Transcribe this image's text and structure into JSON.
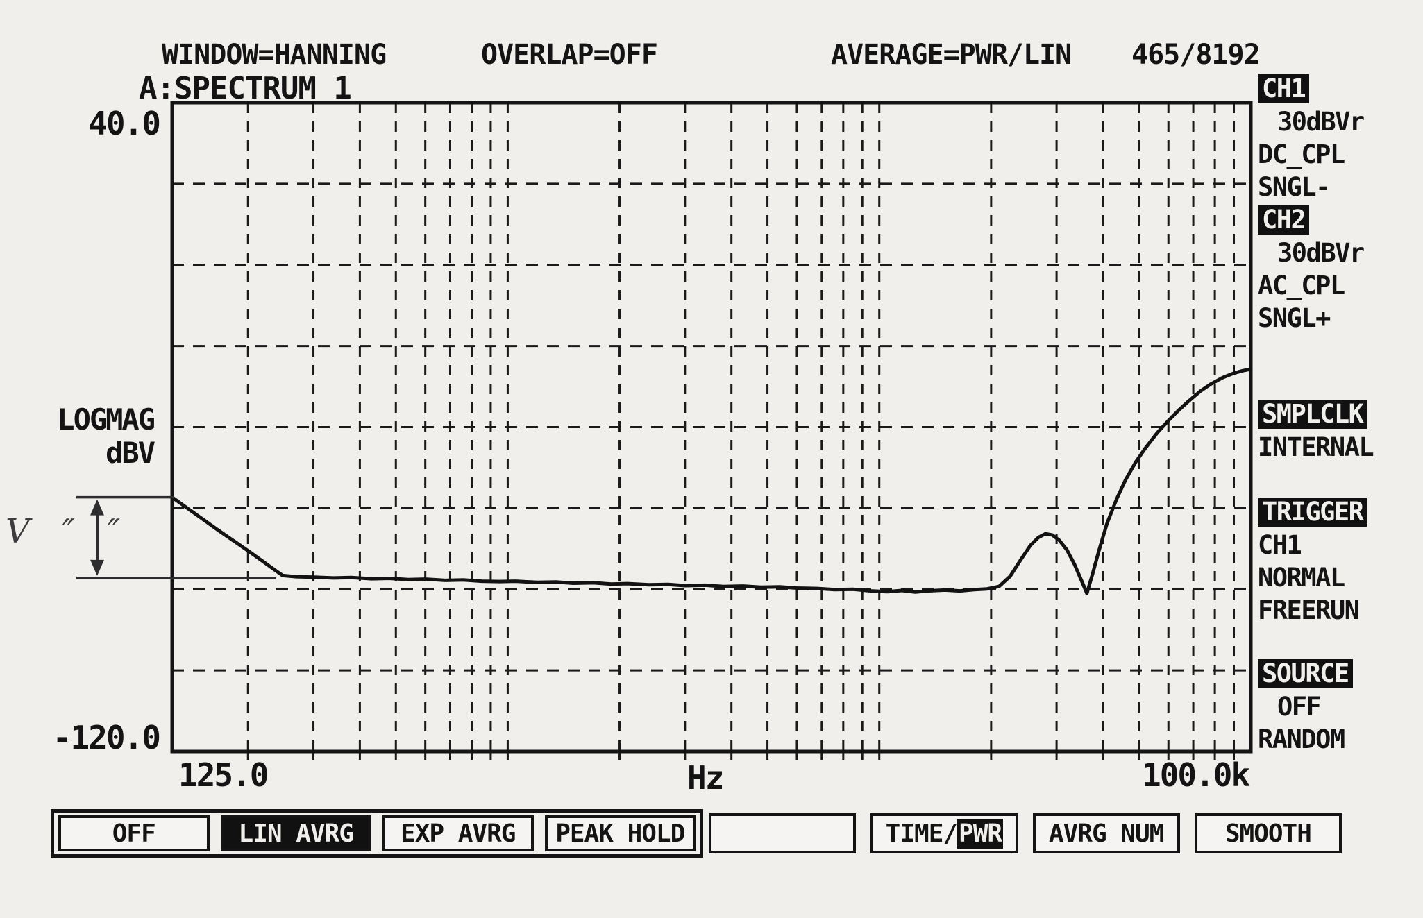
{
  "header": {
    "window": "WINDOW=HANNING",
    "overlap": "OVERLAP=OFF",
    "average": "AVERAGE=PWR/LIN",
    "frame_count": "465/8192"
  },
  "plot": {
    "trace_title": "A:SPECTRUM 1",
    "y_max_label": "40.0",
    "y_min_label": "-120.0",
    "y_unit_line1": "LOGMAG",
    "y_unit_line2": "dBV",
    "x_min_label": "125.0",
    "x_unit": "Hz",
    "x_max_label": "100.0k"
  },
  "annotation": {
    "text": "V ″ ″",
    "upper_db": -57.3,
    "lower_db": -77.2
  },
  "side_panel": {
    "items": [
      {
        "label": "CH1",
        "highlight": true,
        "indent": false,
        "gap": ""
      },
      {
        "label": "30dBVr",
        "highlight": false,
        "indent": true,
        "gap": ""
      },
      {
        "label": "DC_CPL",
        "highlight": false,
        "indent": false,
        "gap": ""
      },
      {
        "label": "SNGL-",
        "highlight": false,
        "indent": false,
        "gap": ""
      },
      {
        "label": "CH2",
        "highlight": true,
        "indent": false,
        "gap": ""
      },
      {
        "label": "30dBVr",
        "highlight": false,
        "indent": true,
        "gap": ""
      },
      {
        "label": "AC_CPL",
        "highlight": false,
        "indent": false,
        "gap": ""
      },
      {
        "label": "SNGL+",
        "highlight": false,
        "indent": false,
        "gap": ""
      },
      {
        "label": "SMPLCLK",
        "highlight": true,
        "indent": false,
        "gap": "gap-smplclk"
      },
      {
        "label": "INTERNAL",
        "highlight": false,
        "indent": false,
        "gap": ""
      },
      {
        "label": "TRIGGER",
        "highlight": true,
        "indent": false,
        "gap": "gap-trigger"
      },
      {
        "label": "CH1",
        "highlight": false,
        "indent": false,
        "gap": ""
      },
      {
        "label": "NORMAL",
        "highlight": false,
        "indent": false,
        "gap": ""
      },
      {
        "label": "FREERUN",
        "highlight": false,
        "indent": false,
        "gap": ""
      },
      {
        "label": "SOURCE",
        "highlight": true,
        "indent": false,
        "gap": "gap-source"
      },
      {
        "label": "OFF",
        "highlight": false,
        "indent": true,
        "gap": ""
      },
      {
        "label": "RANDOM",
        "highlight": false,
        "indent": false,
        "gap": ""
      }
    ]
  },
  "bottom_menu": {
    "group1": [
      {
        "label": "OFF",
        "selected": false
      },
      {
        "label": "LIN AVRG",
        "selected": true
      },
      {
        "label": "EXP AVRG",
        "selected": false
      },
      {
        "label": "PEAK HOLD",
        "selected": false
      }
    ],
    "group2": [
      {
        "label": "",
        "suffix": "",
        "suffix_selected": false
      },
      {
        "label": "TIME/",
        "suffix": "PWR",
        "suffix_selected": true
      },
      {
        "label": "AVRG NUM",
        "suffix": "",
        "suffix_selected": false
      },
      {
        "label": "SMOOTH",
        "suffix": "",
        "suffix_selected": false
      }
    ]
  },
  "chart_data": {
    "type": "line",
    "title": "A:SPECTRUM 1",
    "xlabel": "Hz",
    "ylabel": "LOGMAG dBV",
    "x_scale": "log",
    "x_range_hz": [
      125,
      100000
    ],
    "y_range_db": [
      -120,
      40
    ],
    "x_gridlines_hz": [
      200,
      300,
      400,
      500,
      600,
      700,
      800,
      900,
      1000,
      2000,
      3000,
      4000,
      5000,
      6000,
      7000,
      8000,
      9000,
      10000,
      20000,
      30000,
      40000,
      50000,
      60000,
      70000,
      80000,
      90000
    ],
    "y_gridlines_db": [
      20,
      0,
      -20,
      -40,
      -60,
      -80,
      -100
    ],
    "grid": true,
    "points_hz_db": [
      [
        125,
        -57.3
      ],
      [
        135,
        -59.5
      ],
      [
        150,
        -62.5
      ],
      [
        165,
        -65.2
      ],
      [
        180,
        -67.6
      ],
      [
        200,
        -70.5
      ],
      [
        220,
        -73.2
      ],
      [
        235,
        -75.1
      ],
      [
        248,
        -76.6
      ],
      [
        270,
        -76.9
      ],
      [
        300,
        -77.0
      ],
      [
        340,
        -77.2
      ],
      [
        380,
        -77.1
      ],
      [
        430,
        -77.4
      ],
      [
        480,
        -77.3
      ],
      [
        540,
        -77.6
      ],
      [
        600,
        -77.5
      ],
      [
        680,
        -77.8
      ],
      [
        760,
        -77.7
      ],
      [
        850,
        -78.0
      ],
      [
        950,
        -78.1
      ],
      [
        1050,
        -78.0
      ],
      [
        1200,
        -78.3
      ],
      [
        1350,
        -78.2
      ],
      [
        1500,
        -78.5
      ],
      [
        1700,
        -78.4
      ],
      [
        1900,
        -78.7
      ],
      [
        2100,
        -78.6
      ],
      [
        2400,
        -78.9
      ],
      [
        2700,
        -78.8
      ],
      [
        3000,
        -79.1
      ],
      [
        3400,
        -79.0
      ],
      [
        3800,
        -79.3
      ],
      [
        4300,
        -79.2
      ],
      [
        4800,
        -79.5
      ],
      [
        5400,
        -79.4
      ],
      [
        6000,
        -79.7
      ],
      [
        6800,
        -79.8
      ],
      [
        7600,
        -80.1
      ],
      [
        8500,
        -80.0
      ],
      [
        9500,
        -80.4
      ],
      [
        10500,
        -80.6
      ],
      [
        11500,
        -80.3
      ],
      [
        12500,
        -80.7
      ],
      [
        13500,
        -80.4
      ],
      [
        15000,
        -80.2
      ],
      [
        16500,
        -80.4
      ],
      [
        18000,
        -80.1
      ],
      [
        19500,
        -79.9
      ],
      [
        21000,
        -79.3
      ],
      [
        22500,
        -76.8
      ],
      [
        24000,
        -72.8
      ],
      [
        25500,
        -69.2
      ],
      [
        26800,
        -67.2
      ],
      [
        28000,
        -66.3
      ],
      [
        29200,
        -66.6
      ],
      [
        30500,
        -67.9
      ],
      [
        32000,
        -70.3
      ],
      [
        33500,
        -73.8
      ],
      [
        35000,
        -77.8
      ],
      [
        36200,
        -81.0
      ],
      [
        37500,
        -76.2
      ],
      [
        39000,
        -70.5
      ],
      [
        41000,
        -63.8
      ],
      [
        43500,
        -57.8
      ],
      [
        46000,
        -53.0
      ],
      [
        49000,
        -48.6
      ],
      [
        52000,
        -45.2
      ],
      [
        56000,
        -41.4
      ],
      [
        60000,
        -38.4
      ],
      [
        64000,
        -35.8
      ],
      [
        68000,
        -33.6
      ],
      [
        73000,
        -31.2
      ],
      [
        78000,
        -29.4
      ],
      [
        84000,
        -27.8
      ],
      [
        90000,
        -26.7
      ],
      [
        95000,
        -26.1
      ],
      [
        100000,
        -25.7
      ]
    ]
  }
}
